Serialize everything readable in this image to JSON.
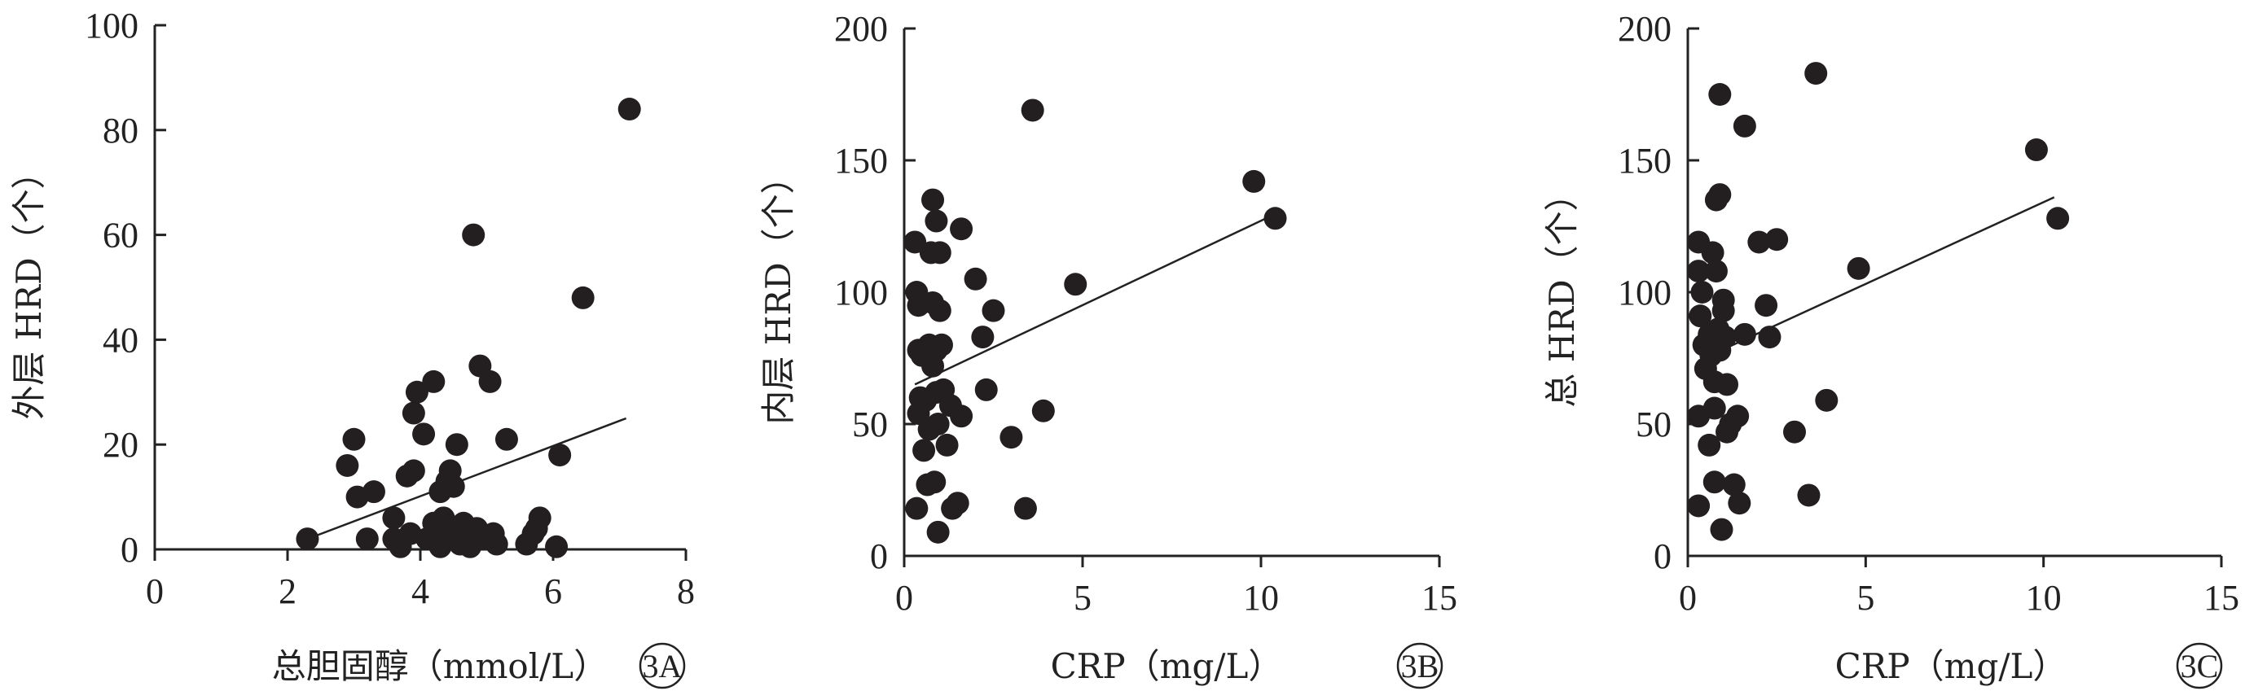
{
  "chart_data": [
    {
      "type": "scatter",
      "panel_label": "3A",
      "xlabel": "总胆固醇（mmol/L）",
      "ylabel": "外层 HRD（个）",
      "xlim": [
        0,
        8
      ],
      "ylim": [
        0,
        100
      ],
      "xticks": [
        0,
        2,
        4,
        6,
        8
      ],
      "yticks": [
        0,
        20,
        40,
        60,
        80,
        100
      ],
      "trendline": {
        "x": [
          2.3,
          7.1
        ],
        "y": [
          2,
          25
        ]
      },
      "points": [
        {
          "x": 2.3,
          "y": 2
        },
        {
          "x": 2.9,
          "y": 16
        },
        {
          "x": 3.0,
          "y": 21
        },
        {
          "x": 3.05,
          "y": 10
        },
        {
          "x": 3.2,
          "y": 2
        },
        {
          "x": 3.3,
          "y": 11
        },
        {
          "x": 3.6,
          "y": 6
        },
        {
          "x": 3.6,
          "y": 2
        },
        {
          "x": 3.7,
          "y": 0.5
        },
        {
          "x": 3.8,
          "y": 14
        },
        {
          "x": 3.85,
          "y": 3
        },
        {
          "x": 3.9,
          "y": 15
        },
        {
          "x": 3.9,
          "y": 26
        },
        {
          "x": 3.95,
          "y": 30
        },
        {
          "x": 4.05,
          "y": 22
        },
        {
          "x": 4.1,
          "y": 2
        },
        {
          "x": 4.2,
          "y": 32
        },
        {
          "x": 4.2,
          "y": 5
        },
        {
          "x": 4.3,
          "y": 11
        },
        {
          "x": 4.3,
          "y": 0.5
        },
        {
          "x": 4.35,
          "y": 6
        },
        {
          "x": 4.4,
          "y": 13
        },
        {
          "x": 4.4,
          "y": 2
        },
        {
          "x": 4.45,
          "y": 15
        },
        {
          "x": 4.5,
          "y": 12
        },
        {
          "x": 4.5,
          "y": 4
        },
        {
          "x": 4.55,
          "y": 20
        },
        {
          "x": 4.6,
          "y": 1
        },
        {
          "x": 4.65,
          "y": 5
        },
        {
          "x": 4.7,
          "y": 3
        },
        {
          "x": 4.75,
          "y": 0.5
        },
        {
          "x": 4.8,
          "y": 60
        },
        {
          "x": 4.85,
          "y": 4
        },
        {
          "x": 4.9,
          "y": 2
        },
        {
          "x": 4.9,
          "y": 35
        },
        {
          "x": 5.05,
          "y": 32
        },
        {
          "x": 5.1,
          "y": 3
        },
        {
          "x": 5.15,
          "y": 1
        },
        {
          "x": 5.3,
          "y": 21
        },
        {
          "x": 5.6,
          "y": 1
        },
        {
          "x": 5.7,
          "y": 3
        },
        {
          "x": 5.8,
          "y": 6
        },
        {
          "x": 5.75,
          "y": 4
        },
        {
          "x": 6.1,
          "y": 18
        },
        {
          "x": 6.05,
          "y": 0.5
        },
        {
          "x": 6.45,
          "y": 48
        },
        {
          "x": 7.15,
          "y": 84
        }
      ]
    },
    {
      "type": "scatter",
      "panel_label": "3B",
      "xlabel": "CRP（mg/L）",
      "ylabel": "内层 HRD（个）",
      "xlim": [
        0,
        15
      ],
      "ylim": [
        0,
        200
      ],
      "xticks": [
        0,
        5,
        10,
        15
      ],
      "yticks": [
        0,
        50,
        100,
        150,
        200
      ],
      "trendline": {
        "x": [
          0.3,
          10.3
        ],
        "y": [
          65,
          129
        ]
      },
      "points": [
        {
          "x": 0.3,
          "y": 119
        },
        {
          "x": 0.35,
          "y": 100
        },
        {
          "x": 0.4,
          "y": 95
        },
        {
          "x": 0.4,
          "y": 78
        },
        {
          "x": 0.45,
          "y": 60
        },
        {
          "x": 0.4,
          "y": 54
        },
        {
          "x": 0.35,
          "y": 18
        },
        {
          "x": 0.5,
          "y": 76
        },
        {
          "x": 0.55,
          "y": 40
        },
        {
          "x": 0.6,
          "y": 59
        },
        {
          "x": 0.65,
          "y": 27
        },
        {
          "x": 0.7,
          "y": 80
        },
        {
          "x": 0.7,
          "y": 48
        },
        {
          "x": 0.75,
          "y": 115
        },
        {
          "x": 0.8,
          "y": 135
        },
        {
          "x": 0.8,
          "y": 96
        },
        {
          "x": 0.8,
          "y": 72
        },
        {
          "x": 0.85,
          "y": 28
        },
        {
          "x": 0.9,
          "y": 127
        },
        {
          "x": 0.9,
          "y": 78
        },
        {
          "x": 0.9,
          "y": 62
        },
        {
          "x": 0.95,
          "y": 50
        },
        {
          "x": 0.95,
          "y": 9
        },
        {
          "x": 1.0,
          "y": 93
        },
        {
          "x": 1.0,
          "y": 115
        },
        {
          "x": 1.05,
          "y": 80
        },
        {
          "x": 1.1,
          "y": 63
        },
        {
          "x": 1.2,
          "y": 42
        },
        {
          "x": 1.3,
          "y": 57
        },
        {
          "x": 1.35,
          "y": 18
        },
        {
          "x": 1.5,
          "y": 20
        },
        {
          "x": 1.6,
          "y": 124
        },
        {
          "x": 1.6,
          "y": 53
        },
        {
          "x": 2.0,
          "y": 105
        },
        {
          "x": 2.2,
          "y": 83
        },
        {
          "x": 2.3,
          "y": 63
        },
        {
          "x": 2.5,
          "y": 93
        },
        {
          "x": 3.0,
          "y": 45
        },
        {
          "x": 3.4,
          "y": 18
        },
        {
          "x": 3.6,
          "y": 169
        },
        {
          "x": 3.9,
          "y": 55
        },
        {
          "x": 4.8,
          "y": 103
        },
        {
          "x": 9.8,
          "y": 142
        },
        {
          "x": 10.4,
          "y": 128
        }
      ]
    },
    {
      "type": "scatter",
      "panel_label": "3C",
      "xlabel": "CRP（mg/L）",
      "ylabel": "总 HRD（个）",
      "xlim": [
        0,
        15
      ],
      "ylim": [
        0,
        200
      ],
      "xticks": [
        0,
        5,
        10,
        15
      ],
      "yticks": [
        0,
        50,
        100,
        150,
        200
      ],
      "trendline": {
        "x": [
          0.3,
          10.3
        ],
        "y": [
          74,
          136
        ]
      },
      "points": [
        {
          "x": 0.3,
          "y": 119
        },
        {
          "x": 0.3,
          "y": 108
        },
        {
          "x": 0.35,
          "y": 91
        },
        {
          "x": 0.3,
          "y": 53
        },
        {
          "x": 0.3,
          "y": 19
        },
        {
          "x": 0.4,
          "y": 100
        },
        {
          "x": 0.45,
          "y": 80
        },
        {
          "x": 0.5,
          "y": 71
        },
        {
          "x": 0.6,
          "y": 42
        },
        {
          "x": 0.6,
          "y": 84
        },
        {
          "x": 0.65,
          "y": 76
        },
        {
          "x": 0.7,
          "y": 115
        },
        {
          "x": 0.75,
          "y": 66
        },
        {
          "x": 0.75,
          "y": 56
        },
        {
          "x": 0.75,
          "y": 28
        },
        {
          "x": 0.8,
          "y": 108
        },
        {
          "x": 0.8,
          "y": 135
        },
        {
          "x": 0.85,
          "y": 86
        },
        {
          "x": 0.9,
          "y": 175
        },
        {
          "x": 0.9,
          "y": 137
        },
        {
          "x": 0.9,
          "y": 78
        },
        {
          "x": 0.95,
          "y": 10
        },
        {
          "x": 1.0,
          "y": 97
        },
        {
          "x": 1.0,
          "y": 93
        },
        {
          "x": 1.05,
          "y": 83
        },
        {
          "x": 1.1,
          "y": 65
        },
        {
          "x": 1.1,
          "y": 47
        },
        {
          "x": 1.2,
          "y": 50
        },
        {
          "x": 1.3,
          "y": 27
        },
        {
          "x": 1.4,
          "y": 53
        },
        {
          "x": 1.45,
          "y": 20
        },
        {
          "x": 1.6,
          "y": 163
        },
        {
          "x": 1.6,
          "y": 84
        },
        {
          "x": 2.0,
          "y": 119
        },
        {
          "x": 2.2,
          "y": 95
        },
        {
          "x": 2.3,
          "y": 83
        },
        {
          "x": 2.5,
          "y": 120
        },
        {
          "x": 3.0,
          "y": 47
        },
        {
          "x": 3.4,
          "y": 23
        },
        {
          "x": 3.6,
          "y": 183
        },
        {
          "x": 3.9,
          "y": 59
        },
        {
          "x": 4.8,
          "y": 109
        },
        {
          "x": 9.8,
          "y": 154
        },
        {
          "x": 10.4,
          "y": 128
        }
      ]
    }
  ]
}
